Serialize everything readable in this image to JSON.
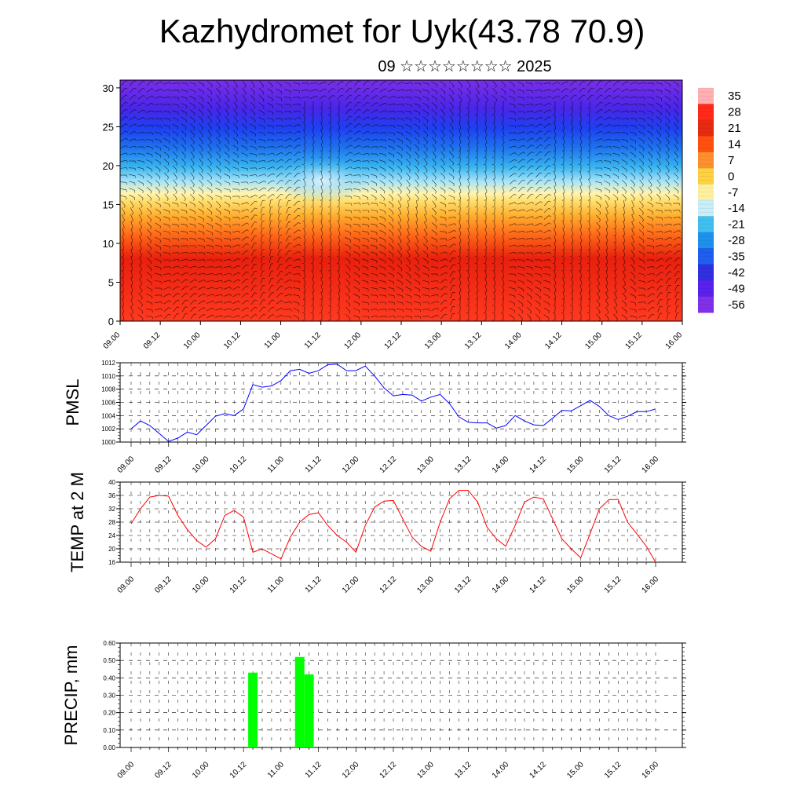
{
  "page": {
    "title": "Kazhydromet for Uyk(43.78 70.9)",
    "subtitle": "09 ☆☆☆☆☆☆☆☆ 2025"
  },
  "chart_data": [
    {
      "type": "heatmap",
      "title": "",
      "ylim": [
        0,
        31
      ],
      "yticks": [
        0,
        5,
        10,
        15,
        20,
        25,
        30
      ],
      "xticks": [
        "09.00",
        "09.12",
        "10.00",
        "10.12",
        "11.00",
        "11.12",
        "12.00",
        "12.12",
        "13.00",
        "13.12",
        "14.00",
        "14.12",
        "15.00",
        "15.12",
        "16.00"
      ],
      "colorbar": {
        "labels": [
          "35",
          "28",
          "21",
          "14",
          "7",
          "0",
          "-7",
          "-14",
          "-21",
          "-28",
          "-35",
          "-42",
          "-49",
          "-56"
        ],
        "colors": [
          "#ffb0b0",
          "#ff2a1a",
          "#e82a10",
          "#ff5010",
          "#ff9030",
          "#ffd040",
          "#fff0a0",
          "#c8eef8",
          "#40c0f0",
          "#1e90ee",
          "#1e5ef0",
          "#3030e0",
          "#5a20f0",
          "#8030e8"
        ]
      },
      "overlay": "wind barbs"
    },
    {
      "type": "line",
      "ylabel": "PMSL",
      "ylim": [
        1000,
        1012
      ],
      "yticks": [
        "1000",
        "1002",
        "1004",
        "1006",
        "1008",
        "1010",
        "1012"
      ],
      "xticks": [
        "09.00",
        "09.12",
        "10.00",
        "10.12",
        "11.00",
        "11.12",
        "12.00",
        "12.12",
        "13.00",
        "13.12",
        "14.00",
        "14.12",
        "15.00",
        "15.12",
        "16.00"
      ],
      "color": "#0000ff",
      "values": [
        1002,
        1003.2,
        1002.5,
        1001.3,
        1000.1,
        1000.6,
        1001.5,
        1001.1,
        1002.5,
        1003.9,
        1004.3,
        1004.0,
        1005.0,
        1008.7,
        1008.3,
        1008.5,
        1009.3,
        1010.8,
        1011.0,
        1010.4,
        1010.8,
        1011.7,
        1011.8,
        1010.8,
        1010.8,
        1011.5,
        1010.0,
        1008.2,
        1007.0,
        1007.2,
        1007.1,
        1006.2,
        1006.8,
        1007.2,
        1005.8,
        1003.8,
        1003.0,
        1002.9,
        1002.9,
        1002.1,
        1002.5,
        1004.0,
        1003.2,
        1002.6,
        1002.5,
        1003.6,
        1004.8,
        1004.7,
        1005.5,
        1006.3,
        1005.4,
        1004.0,
        1003.4,
        1003.9,
        1004.6,
        1004.6,
        1005.0
      ]
    },
    {
      "type": "line",
      "ylabel": "TEMP at 2 M",
      "ylim": [
        16,
        40
      ],
      "yticks": [
        "16",
        "20",
        "24",
        "28",
        "32",
        "36",
        "40"
      ],
      "xticks": [
        "09.00",
        "09.12",
        "10.00",
        "10.12",
        "11.00",
        "11.12",
        "12.00",
        "12.12",
        "13.00",
        "13.12",
        "14.00",
        "14.12",
        "15.00",
        "15.12",
        "16.00"
      ],
      "color": "#ff0000",
      "values": [
        27.5,
        32.0,
        35.5,
        36.0,
        35.8,
        30.0,
        25.8,
        22.5,
        20.5,
        23.0,
        30.0,
        31.5,
        29.5,
        19.0,
        20.0,
        18.5,
        17.0,
        23.5,
        28.0,
        30.3,
        30.8,
        27.0,
        24.0,
        22.0,
        19.0,
        27.0,
        32.5,
        34.3,
        34.5,
        29.0,
        23.5,
        20.7,
        19.3,
        28.0,
        35.0,
        37.5,
        37.5,
        34.0,
        26.5,
        23.0,
        20.8,
        27.0,
        34.0,
        35.5,
        35.0,
        29.0,
        23.0,
        20.0,
        17.3,
        24.5,
        32.0,
        34.7,
        34.8,
        28.0,
        24.5,
        20.8,
        16.0
      ]
    },
    {
      "type": "bar",
      "ylabel": "PRECIP, mm",
      "ylim": [
        0,
        0.6
      ],
      "yticks": [
        "0.00",
        "0.10",
        "0.20",
        "0.30",
        "0.40",
        "0.50",
        "0.60"
      ],
      "xticks": [
        "09.00",
        "09.12",
        "10.00",
        "10.12",
        "11.00",
        "11.12",
        "12.00",
        "12.12",
        "13.00",
        "13.12",
        "14.00",
        "14.12",
        "15.00",
        "15.12",
        "16.00"
      ],
      "color": "#00ff00",
      "bars": [
        {
          "step": 13,
          "value": 0.43
        },
        {
          "step": 18,
          "value": 0.52
        },
        {
          "step": 19,
          "value": 0.42
        }
      ]
    }
  ]
}
